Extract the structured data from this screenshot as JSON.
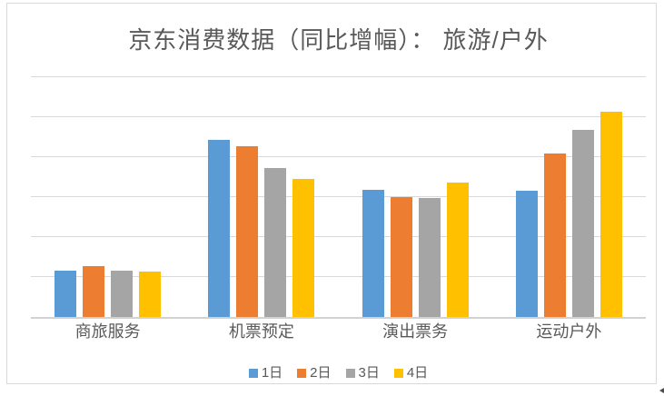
{
  "card": {
    "background": "#ffffff",
    "border_color": "#d9d9d9"
  },
  "chart_data": {
    "type": "bar",
    "title": "京东消费数据（同比增幅）： 旅游/户外",
    "categories": [
      "商旅服务",
      "机票预定",
      "演出票务",
      "运动户外"
    ],
    "series": [
      {
        "name": "1日",
        "color": "#5B9BD5",
        "values": [
          1.16,
          4.43,
          3.18,
          3.16
        ]
      },
      {
        "name": "2日",
        "color": "#ED7D31",
        "values": [
          1.27,
          4.27,
          3.0,
          4.09
        ]
      },
      {
        "name": "3日",
        "color": "#A5A5A5",
        "values": [
          1.16,
          3.73,
          2.98,
          4.68
        ]
      },
      {
        "name": "4日",
        "color": "#FFC000",
        "values": [
          1.14,
          3.45,
          3.36,
          5.14
        ]
      }
    ],
    "xlabel": "",
    "ylabel": "",
    "ylim": [
      0,
      6
    ],
    "gridline_interval": 1,
    "y_axis_labels_visible": false,
    "value_units": "gridline units (no numeric axis labels shown)",
    "grid": true,
    "gridline_color": "#d9d9d9",
    "legend_position": "bottom",
    "text_color": "#595959",
    "title_color": "#595959"
  },
  "decorations": {
    "scrollbar_arrow_color": "#4d4d4d"
  }
}
